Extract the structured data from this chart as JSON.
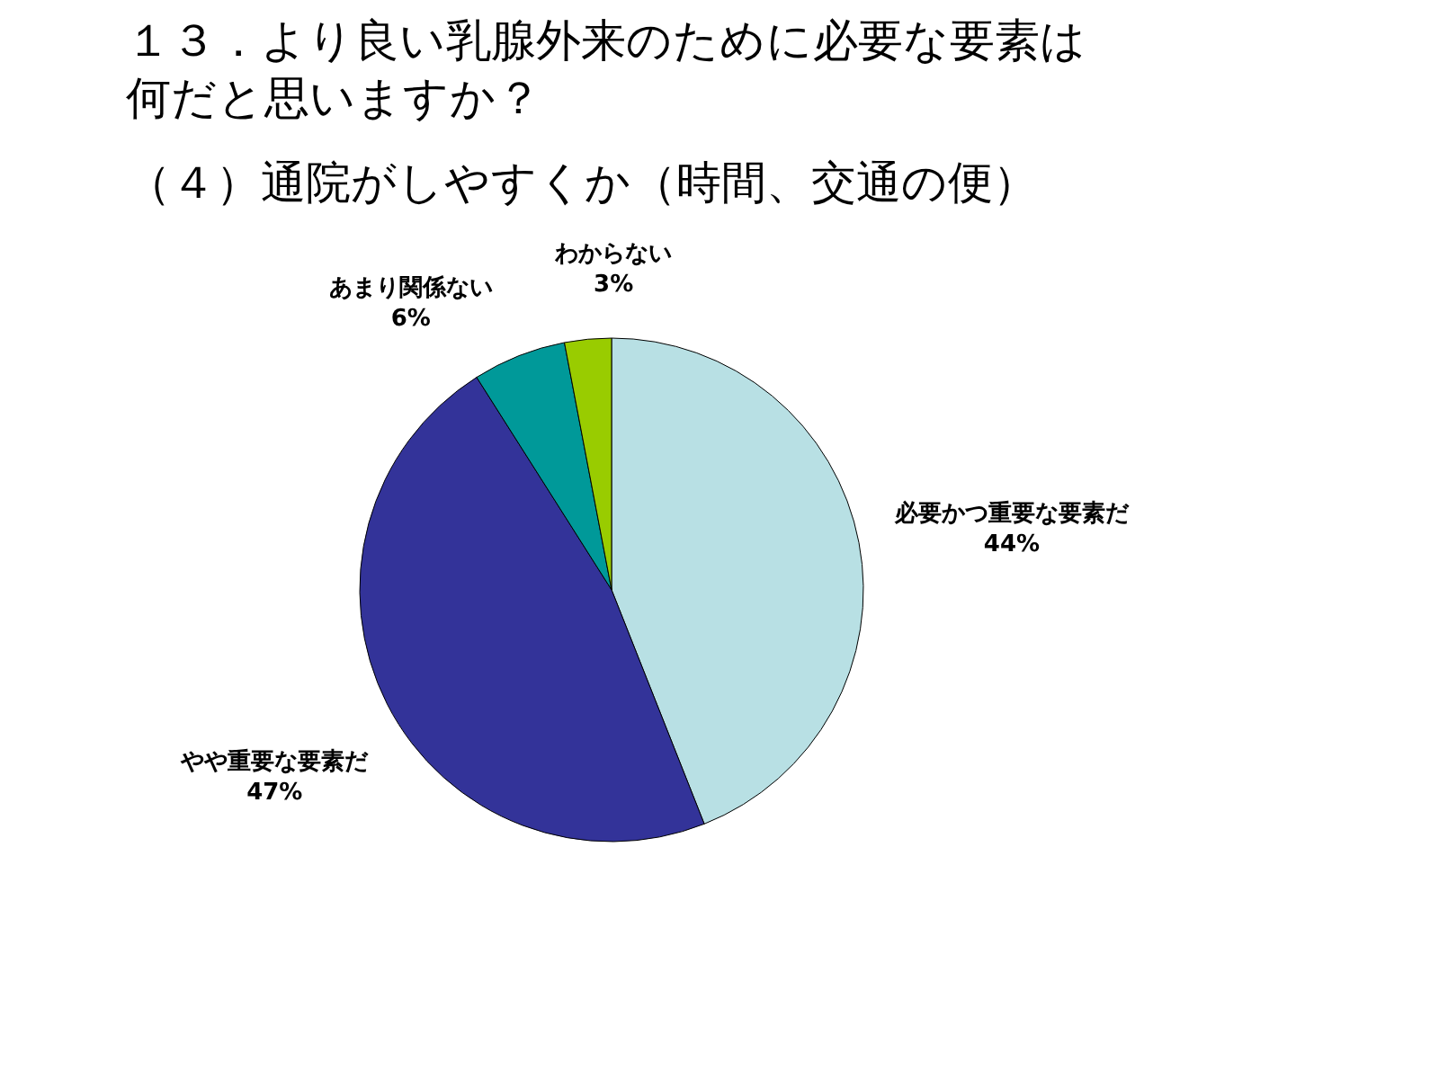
{
  "chart_data": {
    "type": "pie",
    "title": "１３．より良い乳腺外来のために必要な要素は何だと思いますか？",
    "subtitle": "（４）通院がしやすくか（時間、交通の便）",
    "categories": [
      "必要かつ重要な要素だ",
      "やや重要な要素だ",
      "あまり関係ない",
      "わからない"
    ],
    "values": [
      44,
      47,
      6,
      3
    ],
    "value_labels": [
      "44%",
      "47%",
      "6%",
      "3%"
    ],
    "colors": [
      "#b8e0e4",
      "#333399",
      "#009999",
      "#99cc00"
    ]
  }
}
